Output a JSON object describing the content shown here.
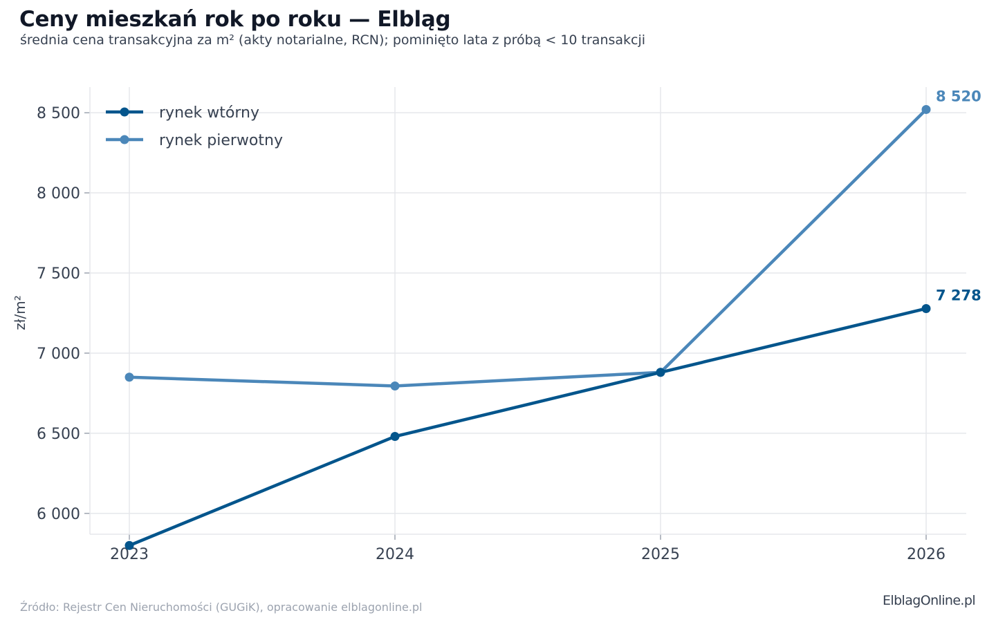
{
  "header": {
    "title": "Ceny mieszkań rok po roku — Elbląg",
    "subtitle": "średnia cena transakcyjna za m² (akty notarialne, RCN); pominięto lata z próbą < 10 transakcji"
  },
  "footer": {
    "source": "Źródło: Rejestr Cen Nieruchomości (GUGiK), opracowanie elblagonline.pl",
    "logo": "ElblagOnline.pl"
  },
  "chart_data": {
    "type": "line",
    "title": "Ceny mieszkań rok po roku — Elbląg",
    "subtitle": "średnia cena transakcyjna za m² (akty notarialne, RCN); pominięto lata z próbą < 10 transakcji",
    "xlabel": "",
    "ylabel": "zł/m²",
    "x": [
      "2023",
      "2024",
      "2025",
      "2026"
    ],
    "ylim": [
      5870,
      8660
    ],
    "yticks": [
      6000,
      6500,
      7000,
      7500,
      8000,
      8500
    ],
    "ytick_labels": [
      "6 000",
      "6 500",
      "7 000",
      "7 500",
      "8 000",
      "8 500"
    ],
    "grid": true,
    "legend_position": "top-left",
    "series": [
      {
        "name": "rynek wtórny",
        "color": "#03558c",
        "values": [
          5800,
          6480,
          6880,
          7278
        ],
        "end_label": "7 278"
      },
      {
        "name": "rynek pierwotny",
        "color": "#4b87b9",
        "values": [
          6850,
          6795,
          6880,
          8520
        ],
        "end_label": "8 520"
      }
    ]
  }
}
